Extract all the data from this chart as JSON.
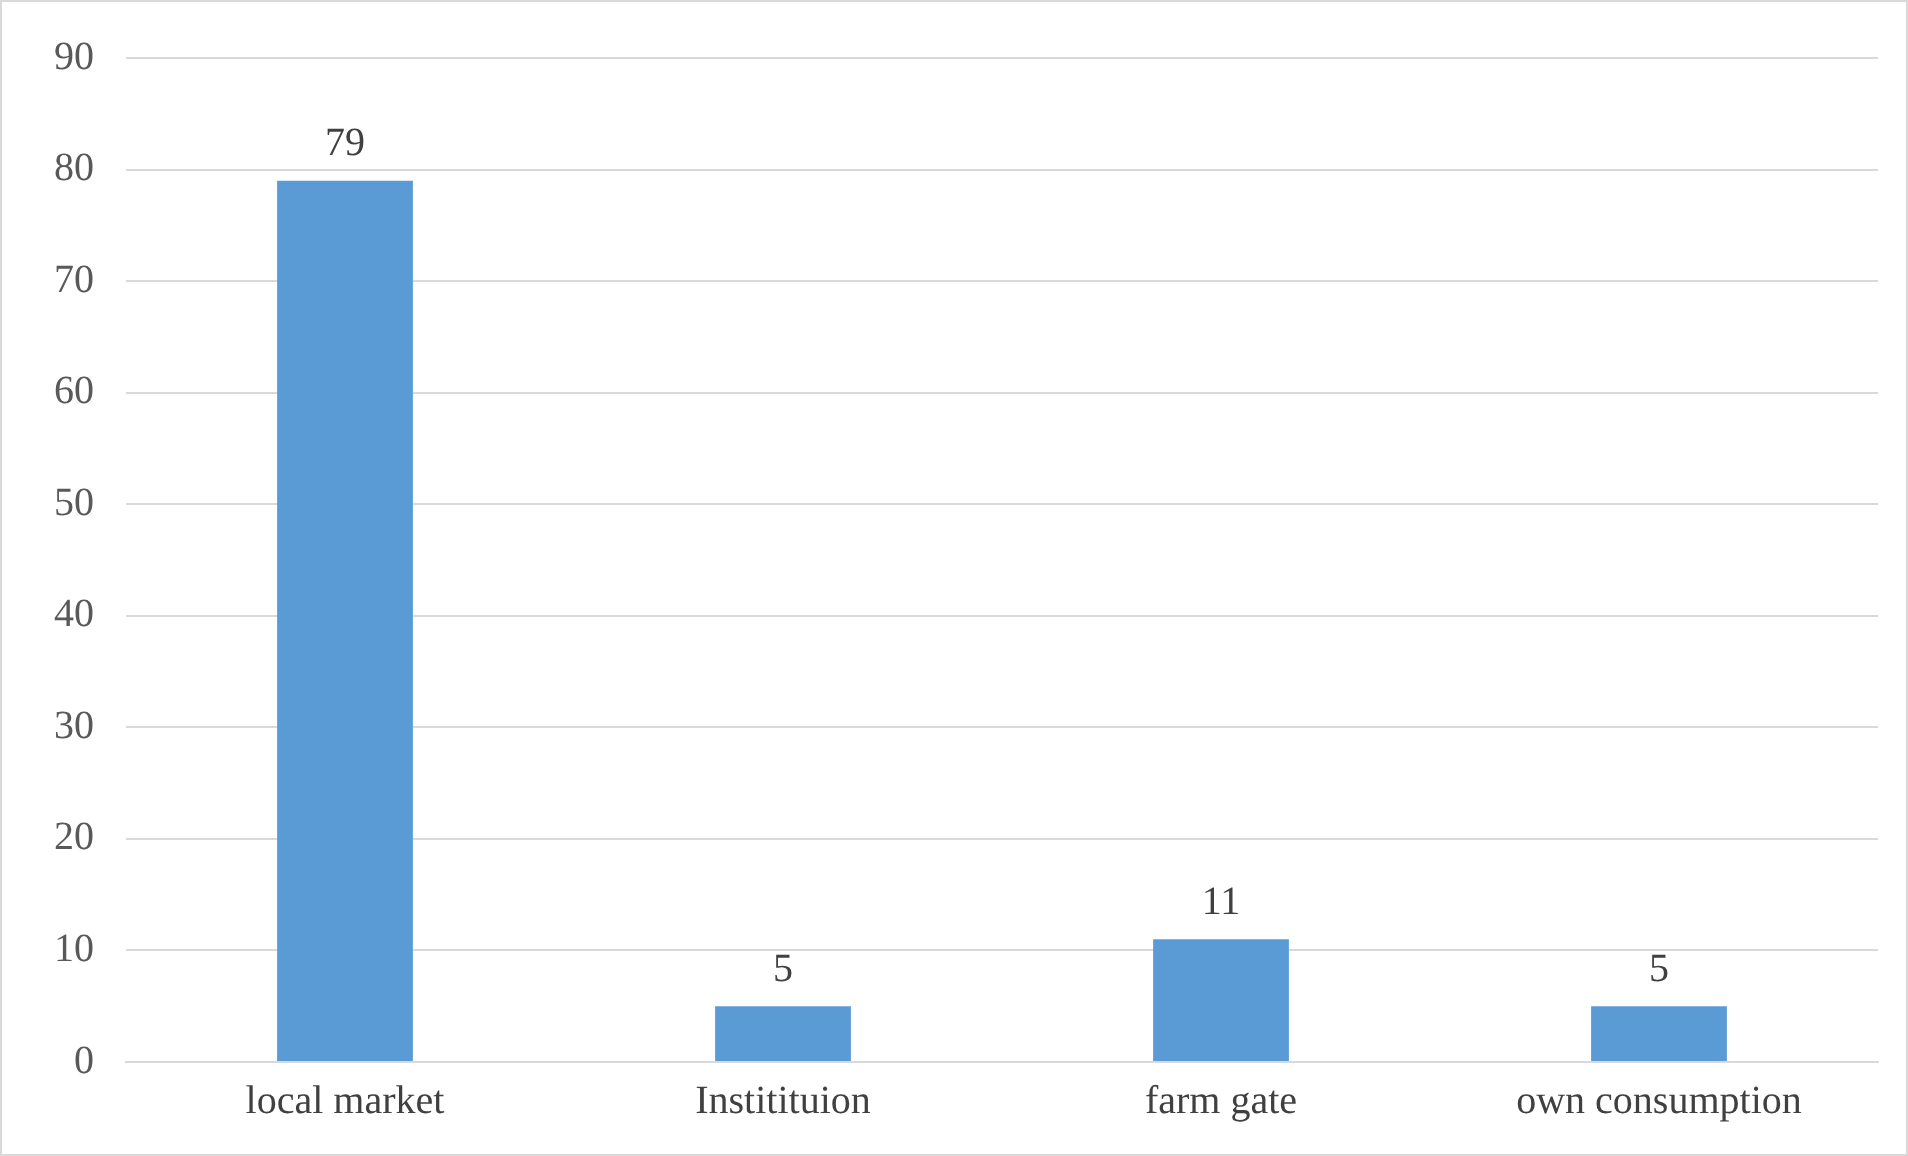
{
  "chart_data": {
    "type": "bar",
    "categories": [
      "local market",
      "Institituion",
      "farm gate",
      "own consumption"
    ],
    "values": [
      79,
      5,
      11,
      5
    ],
    "color": "#5b9bd5",
    "ylim": [
      0,
      90
    ],
    "yticks": [
      0,
      10,
      20,
      30,
      40,
      50,
      60,
      70,
      80,
      90
    ],
    "grid": "y",
    "data_labels": true,
    "legend": false
  }
}
